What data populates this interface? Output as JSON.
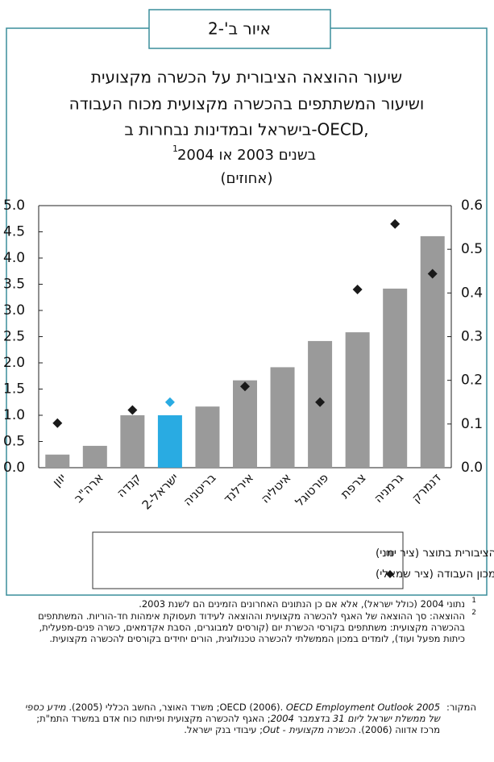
{
  "figure_label": "איור ב'-2",
  "chart_data": {
    "type": "bar",
    "title_lines": [
      "שיעור ההוצאה הציבורית על הכשרה מקצועית",
      "ושיעור המשתתפים בהכשרה מקצועית מכוח העבודה",
      "בישראל ובמדינות נבחרות ב-OECD,"
    ],
    "subtitle": "בשנים 2003 או 2004",
    "subtitle_note": "1",
    "units": "(אחוזים)",
    "categories": [
      "יוון",
      "ארה\"ב",
      "קנדה",
      "ישראל-2",
      "בריטניה",
      "אירלנד",
      "איטליה",
      "פורטוגל",
      "צרפת",
      "גרמניה",
      "דנמרק"
    ],
    "series": [
      {
        "name": "שיעור ההוצאה הציבורית בתוצר (ציר ימני)",
        "type": "bar",
        "axis": "y2",
        "color": "#9a9a9a",
        "values": [
          0.03,
          0.05,
          0.12,
          0.12,
          0.14,
          0.2,
          0.23,
          0.29,
          0.31,
          0.41,
          0.53
        ]
      },
      {
        "name": "שיעור המשתתפים במכון העבודה (ציר שמאלי)",
        "type": "scatter",
        "axis": "y",
        "color": "#1a1a1a",
        "values": [
          0.85,
          null,
          1.1,
          1.25,
          null,
          1.55,
          null,
          1.25,
          3.4,
          4.65,
          3.7
        ]
      }
    ],
    "highlight": {
      "category": "ישראל-2",
      "color": "#29abe2"
    },
    "ylim": [
      0,
      5
    ],
    "yticks": [
      {
        "value": 0,
        "label": "0.0"
      },
      0.5,
      {
        "value": 1,
        "label": "1.0"
      },
      1.5,
      {
        "value": 2,
        "label": "2.0"
      },
      2.5,
      {
        "value": 3,
        "label": "3.0"
      },
      3.5,
      {
        "value": 4,
        "label": "4.0"
      },
      4.5,
      {
        "value": 5,
        "label": "5.0"
      }
    ],
    "y2lim": [
      0,
      0.6
    ],
    "y2ticks": [
      {
        "value": 0,
        "label": "0.0"
      },
      0.1,
      0.2,
      0.3,
      0.4,
      0.5,
      0.6
    ],
    "grid": false
  },
  "footnotes": [
    {
      "mark": "1",
      "text": "נתוני 2004 (כולל ישראל), אלא אם כן הנתונים האחרונים הזמינים הם לשנת 2003."
    },
    {
      "mark": "2",
      "text": "ההוצאה: סך ההוצאה של האגף להכשרה מקצועית וההוצאה לעידוד תעסוקת אימהות חד-הוריות. המשתתפים בהכשרה מקצועית: משתתפים בקורסי הכשרת יום (קורסים למבוגרים, הסבת אקדמאים, כשרה פנים-מפעלית, כיתות מפעל ועוד), לומדים במכון הממשלתי להכשרה טכנולוגית, הורים יחידים בקורסים להכשרה מקצועית."
    }
  ],
  "source": {
    "label": "המקור:",
    "parts": [
      {
        "text": "OECD (2006). ",
        "italic": false
      },
      {
        "text": "OECD Employment Outlook 2005",
        "italic": true
      },
      {
        "text": "; משרד האוצר, החשב הכללי (2005). ",
        "italic": false
      },
      {
        "text": "מידע כספי של ממשלת ישראל ליום 31 בדצמבר 2004",
        "italic": true
      },
      {
        "text": "; האגף להכשרה מקצועית ופיתוח כוח אדם במשרד התמ\"ת; מרכז אדווה (2006). ",
        "italic": false
      },
      {
        "text": "הכשרה מקצועית - Out",
        "italic": true
      },
      {
        "text": "; עיבודי בנק ישראל.",
        "italic": false
      }
    ]
  }
}
